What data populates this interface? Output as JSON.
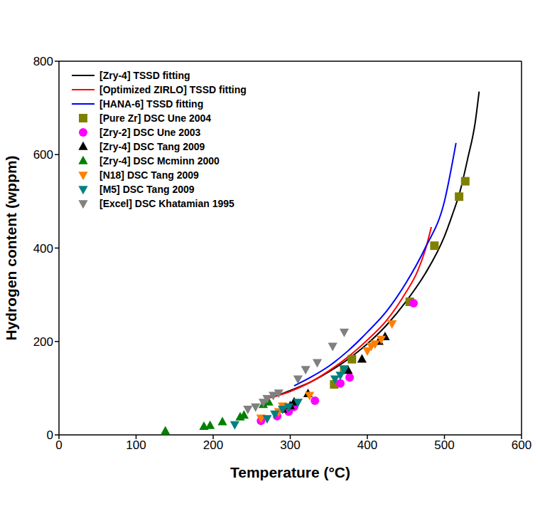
{
  "chart_data": {
    "type": "scatter",
    "x_label": "Temperature (°C)",
    "y_label": "Hydrogen content (wppm)",
    "xlim": [
      0,
      600
    ],
    "xticks": [
      0,
      100,
      200,
      300,
      400,
      500,
      600
    ],
    "ylim": [
      0,
      800
    ],
    "yticks": [
      0,
      200,
      400,
      600,
      800
    ],
    "legend": "upper left",
    "series": [
      {
        "name": "[Zry-4] TSSD fitting",
        "type": "line",
        "color": "#000000",
        "line_style": "solid",
        "x": [
          280,
          300,
          325,
          350,
          375,
          400,
          425,
          450,
          475,
          500,
          510,
          520,
          530,
          540,
          545
        ],
        "values": [
          82,
          95,
          112,
          135,
          162,
          195,
          235,
          285,
          345,
          425,
          470,
          520,
          590,
          670,
          735
        ]
      },
      {
        "name": "[Optimized ZIRLO] TSSD fitting",
        "type": "line",
        "color": "#ff0000",
        "line_style": "solid",
        "x": [
          270,
          300,
          325,
          350,
          375,
          400,
          425,
          450,
          465,
          475,
          483
        ],
        "values": [
          78,
          93,
          112,
          137,
          167,
          203,
          245,
          305,
          350,
          395,
          445
        ]
      },
      {
        "name": "[HANA-6] TSSD fitting",
        "type": "line",
        "color": "#0000ff",
        "line_style": "solid",
        "x": [
          305,
          325,
          350,
          375,
          400,
          425,
          450,
          475,
          500,
          515
        ],
        "values": [
          105,
          122,
          147,
          180,
          220,
          265,
          325,
          400,
          500,
          625
        ]
      },
      {
        "name": "[Pure Zr] DSC Une 2004",
        "type": "scatter",
        "color": "#808000",
        "marker": "square",
        "x": [
          357,
          370,
          380,
          455,
          487,
          519,
          527
        ],
        "values": [
          108,
          140,
          162,
          285,
          405,
          510,
          543
        ]
      },
      {
        "name": "[Zry-2] DSC Une 2003",
        "type": "scatter",
        "color": "#ff00ff",
        "marker": "circle",
        "x": [
          262,
          283,
          298,
          305,
          332,
          365,
          377,
          460
        ],
        "values": [
          30,
          40,
          50,
          60,
          73,
          110,
          123,
          282
        ]
      },
      {
        "name": "[Zry-4] DSC Tang 2009",
        "type": "scatter",
        "color": "#000000",
        "marker": "triangle_up",
        "x": [
          290,
          300,
          305,
          323,
          375,
          393,
          415,
          423
        ],
        "values": [
          55,
          62,
          70,
          88,
          138,
          162,
          200,
          210
        ]
      },
      {
        "name": "[Zry-4] DSC Mcminn 2000",
        "type": "scatter",
        "color": "#008000",
        "marker": "triangle_up",
        "x": [
          138,
          188,
          196,
          212,
          235,
          240,
          265,
          272
        ],
        "values": [
          8,
          18,
          20,
          28,
          38,
          42,
          65,
          70
        ]
      },
      {
        "name": "[N18] DSC Tang 2009",
        "type": "scatter",
        "color": "#ff8000",
        "marker": "triangle_down",
        "x": [
          262,
          285,
          290,
          325,
          400,
          405,
          410,
          418,
          432
        ],
        "values": [
          36,
          50,
          62,
          85,
          180,
          190,
          195,
          205,
          238
        ]
      },
      {
        "name": "[M5] DSC Tang 2009",
        "type": "scatter",
        "color": "#008080",
        "marker": "triangle_down",
        "x": [
          228,
          270,
          280,
          290,
          298,
          310,
          358,
          365,
          370
        ],
        "values": [
          22,
          35,
          45,
          55,
          60,
          70,
          120,
          128,
          140
        ]
      },
      {
        "name": "[Excel] DSC Khatamian 1995",
        "type": "scatter",
        "color": "#808080",
        "marker": "triangle_down",
        "x": [
          245,
          255,
          265,
          270,
          278,
          285,
          310,
          320,
          335,
          355,
          370
        ],
        "values": [
          55,
          60,
          70,
          78,
          85,
          90,
          120,
          140,
          155,
          190,
          220
        ]
      }
    ]
  }
}
